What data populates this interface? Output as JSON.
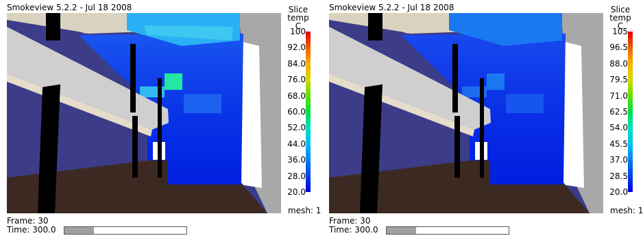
{
  "panels": [
    {
      "title": "Smokeview 5.2.2 - Jul 18 2008",
      "colorbar": {
        "heading": "Slice",
        "quantity": "temp",
        "unit": "C",
        "ticks": [
          "100",
          "92.0",
          "84.0",
          "76.0",
          "68.0",
          "60.0",
          "52.0",
          "44.0",
          "36.0",
          "28.0",
          "20.0"
        ]
      },
      "mesh_label": "mesh: 1",
      "frame_label": "Frame: 30",
      "time_label": "Time: 300.0",
      "time_progress": 0.24
    },
    {
      "title": "Smokeview 5.2.2 - Jul 18 2008",
      "colorbar": {
        "heading": "Slice",
        "quantity": "temp",
        "unit": "C",
        "ticks": [
          "105",
          "96.5",
          "88.0",
          "79.5",
          "71.0",
          "62.5",
          "54.0",
          "45.5",
          "37.0",
          "28.5",
          "20.0"
        ]
      },
      "mesh_label": "mesh: 1",
      "frame_label": "Frame: 30",
      "time_label": "Time: 300.0",
      "time_progress": 0.24
    }
  ]
}
